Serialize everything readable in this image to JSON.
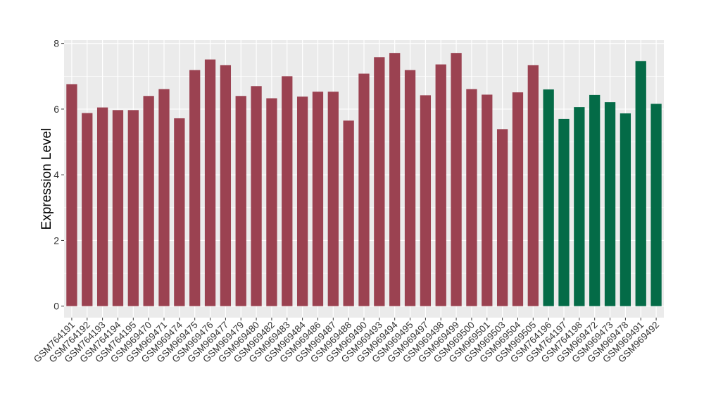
{
  "chart_data": {
    "type": "bar",
    "ylabel": "Expression Level",
    "xlabel": "",
    "ylim": [
      -0.35,
      8.1
    ],
    "yticks": [
      0,
      2,
      4,
      6,
      8
    ],
    "grid": true,
    "colors": {
      "group_a": "#9b4251",
      "group_b": "#046b47",
      "panel": "#ebebeb",
      "grid": "#ffffff"
    },
    "categories": [
      "GSM764191",
      "GSM764192",
      "GSM764193",
      "GSM764194",
      "GSM764195",
      "GSM969470",
      "GSM969471",
      "GSM969474",
      "GSM969475",
      "GSM969476",
      "GSM969477",
      "GSM969479",
      "GSM969480",
      "GSM969482",
      "GSM969483",
      "GSM969484",
      "GSM969486",
      "GSM969487",
      "GSM969488",
      "GSM969490",
      "GSM969493",
      "GSM969494",
      "GSM969495",
      "GSM969497",
      "GSM969498",
      "GSM969499",
      "GSM969500",
      "GSM969501",
      "GSM969503",
      "GSM969504",
      "GSM969505",
      "GSM764196",
      "GSM764197",
      "GSM764198",
      "GSM969472",
      "GSM969473",
      "GSM969478",
      "GSM969491",
      "GSM969492"
    ],
    "values": [
      6.76,
      5.88,
      6.05,
      5.97,
      5.97,
      6.4,
      6.61,
      5.72,
      7.19,
      7.51,
      7.34,
      6.4,
      6.7,
      6.33,
      7.0,
      6.38,
      6.53,
      6.53,
      5.65,
      7.08,
      7.58,
      7.71,
      7.19,
      6.42,
      7.36,
      7.71,
      6.61,
      6.44,
      5.39,
      6.51,
      7.34,
      6.6,
      5.7,
      6.06,
      6.43,
      6.21,
      5.87,
      7.46,
      6.16
    ],
    "groups": [
      "a",
      "a",
      "a",
      "a",
      "a",
      "a",
      "a",
      "a",
      "a",
      "a",
      "a",
      "a",
      "a",
      "a",
      "a",
      "a",
      "a",
      "a",
      "a",
      "a",
      "a",
      "a",
      "a",
      "a",
      "a",
      "a",
      "a",
      "a",
      "a",
      "a",
      "a",
      "b",
      "b",
      "b",
      "b",
      "b",
      "b",
      "b",
      "b"
    ]
  }
}
